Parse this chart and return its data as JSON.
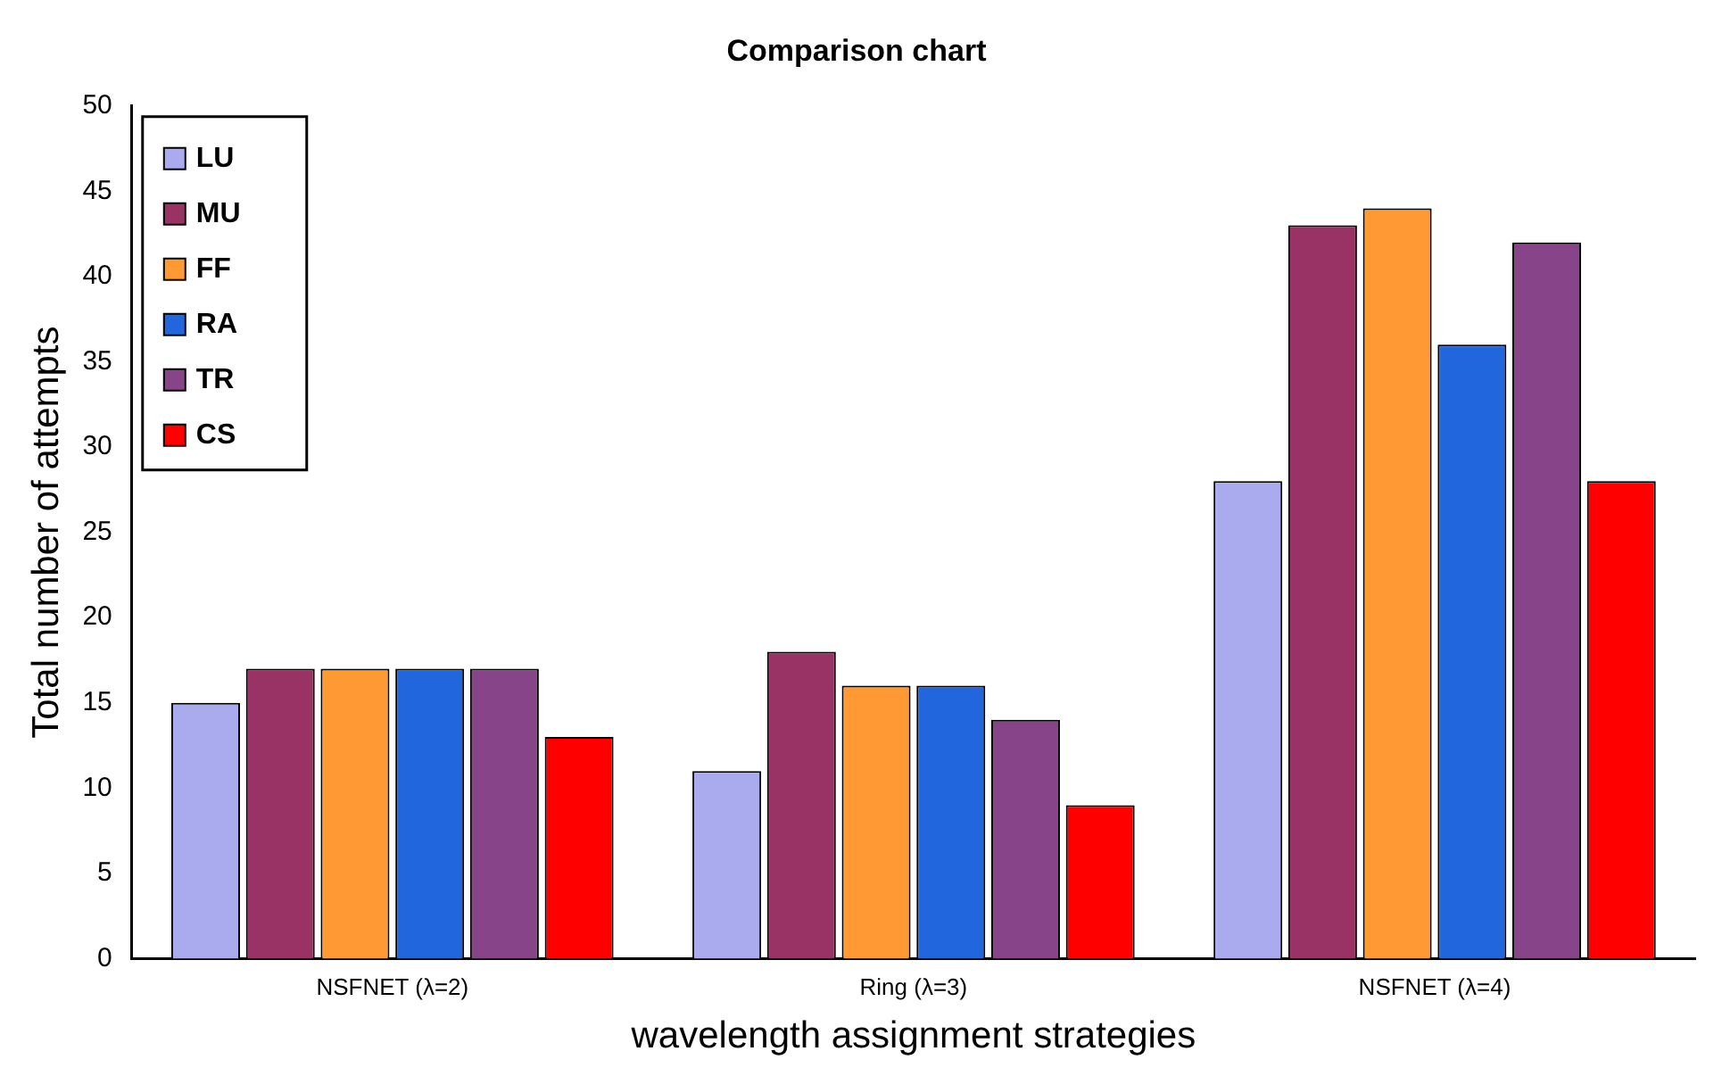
{
  "chart_data": {
    "type": "bar",
    "title": "Comparison chart",
    "xlabel": "wavelength assignment strategies",
    "ylabel": "Total number of attempts",
    "categories": [
      "NSFNET (λ=2)",
      "Ring (λ=3)",
      "NSFNET (λ=4)"
    ],
    "series": [
      {
        "name": "LU",
        "color": "#aaaaee",
        "values": [
          15,
          11,
          28
        ]
      },
      {
        "name": "MU",
        "color": "#993366",
        "values": [
          17,
          18,
          43
        ]
      },
      {
        "name": "FF",
        "color": "#ff9933",
        "values": [
          17,
          16,
          44
        ]
      },
      {
        "name": "RA",
        "color": "#2266dd",
        "values": [
          17,
          16,
          36
        ]
      },
      {
        "name": "TR",
        "color": "#884488",
        "values": [
          17,
          14,
          42
        ]
      },
      {
        "name": "CS",
        "color": "#ff0000",
        "values": [
          13,
          9,
          28
        ]
      }
    ],
    "ylim": [
      0,
      50
    ],
    "yticks": [
      0,
      5,
      10,
      15,
      20,
      25,
      30,
      35,
      40,
      45,
      50
    ],
    "grid": false,
    "legend": "top left"
  }
}
